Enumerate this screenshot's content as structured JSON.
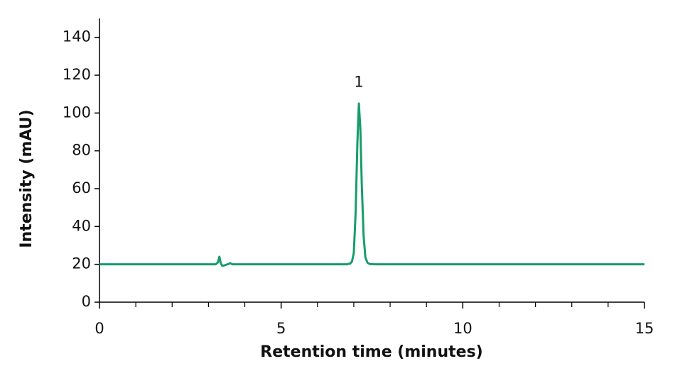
{
  "chart_data": {
    "type": "line",
    "x_label": "Retention time (minutes)",
    "y_label": "Intensity (mAU)",
    "xlim": [
      0,
      15
    ],
    "xticks": [
      0,
      5,
      10,
      15
    ],
    "xminorticks": [
      1,
      2,
      3,
      4,
      6,
      7,
      8,
      9,
      11,
      12,
      13,
      14
    ],
    "ylim": [
      0,
      150
    ],
    "yticks": [
      0,
      20,
      40,
      60,
      80,
      100,
      120,
      140
    ],
    "grid": false,
    "series": [
      {
        "color": "#179c6a",
        "x": [
          0,
          3.2,
          3.26,
          3.3,
          3.34,
          3.38,
          3.45,
          3.55,
          3.6,
          3.66,
          6.8,
          6.9,
          6.95,
          7.0,
          7.05,
          7.1,
          7.14,
          7.18,
          7.22,
          7.27,
          7.32,
          7.38,
          7.45,
          7.6,
          15
        ],
        "values": [
          20,
          20,
          21,
          24,
          20.5,
          19.2,
          19.5,
          20.2,
          20.6,
          20,
          20,
          20.4,
          21.5,
          26,
          47,
          85,
          105,
          92,
          62,
          35,
          23.5,
          20.8,
          20.1,
          20,
          20
        ]
      }
    ],
    "annotations": [
      {
        "text": "1",
        "x": 7.14,
        "y": 116
      }
    ]
  }
}
